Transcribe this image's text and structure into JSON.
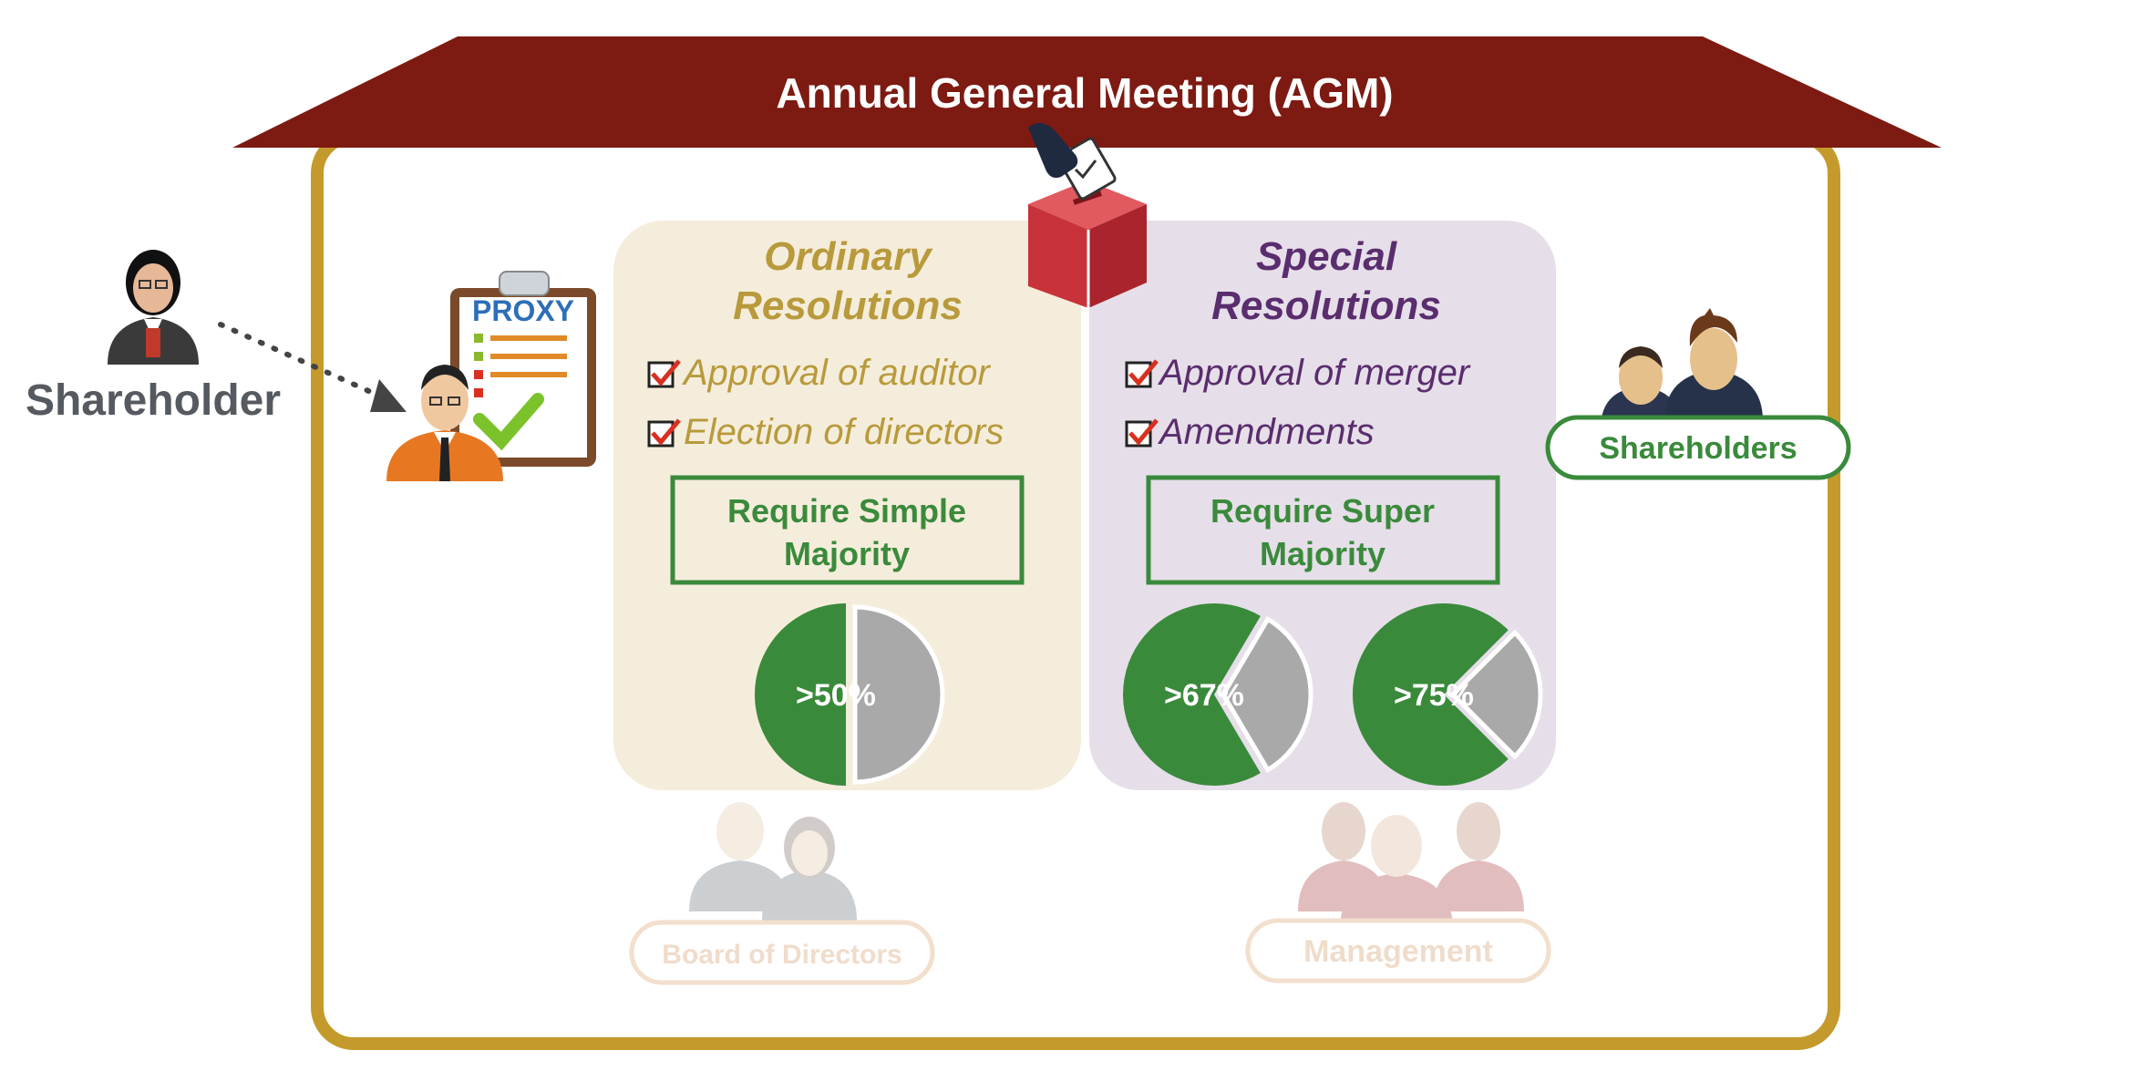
{
  "title": "Annual General Meeting (AGM)",
  "shareholder_label": "Shareholder",
  "proxy_label": "PROXY",
  "shareholders_label": "Shareholders",
  "board_label": "Board of Directors",
  "management_label": "Management",
  "ordinary": {
    "heading_line1": "Ordinary",
    "heading_line2": "Resolutions",
    "items": [
      "Approval of auditor",
      "Election of directors"
    ],
    "requirement_line1": "Require Simple",
    "requirement_line2": "Majority",
    "pies": [
      {
        "label": ">50%",
        "fraction": 0.5
      }
    ]
  },
  "special": {
    "heading_line1": "Special",
    "heading_line2": "Resolutions",
    "items": [
      "Approval of merger",
      "Amendments"
    ],
    "requirement_line1": "Require Super",
    "requirement_line2": "Majority",
    "pies": [
      {
        "label": ">67%",
        "fraction": 0.67
      },
      {
        "label": ">75%",
        "fraction": 0.75
      }
    ]
  },
  "colors": {
    "roof": "#7d1a12",
    "house_border": "#c49a2c",
    "ordinary_bg": "#f5eddb",
    "ordinary_text": "#b89a3c",
    "special_bg": "#e6dfe9",
    "special_text": "#5a2d6e",
    "green": "#3a8a3c",
    "gray": "#a9a9a9",
    "check_red": "#d83020",
    "ballot_red": "#c8323a"
  }
}
